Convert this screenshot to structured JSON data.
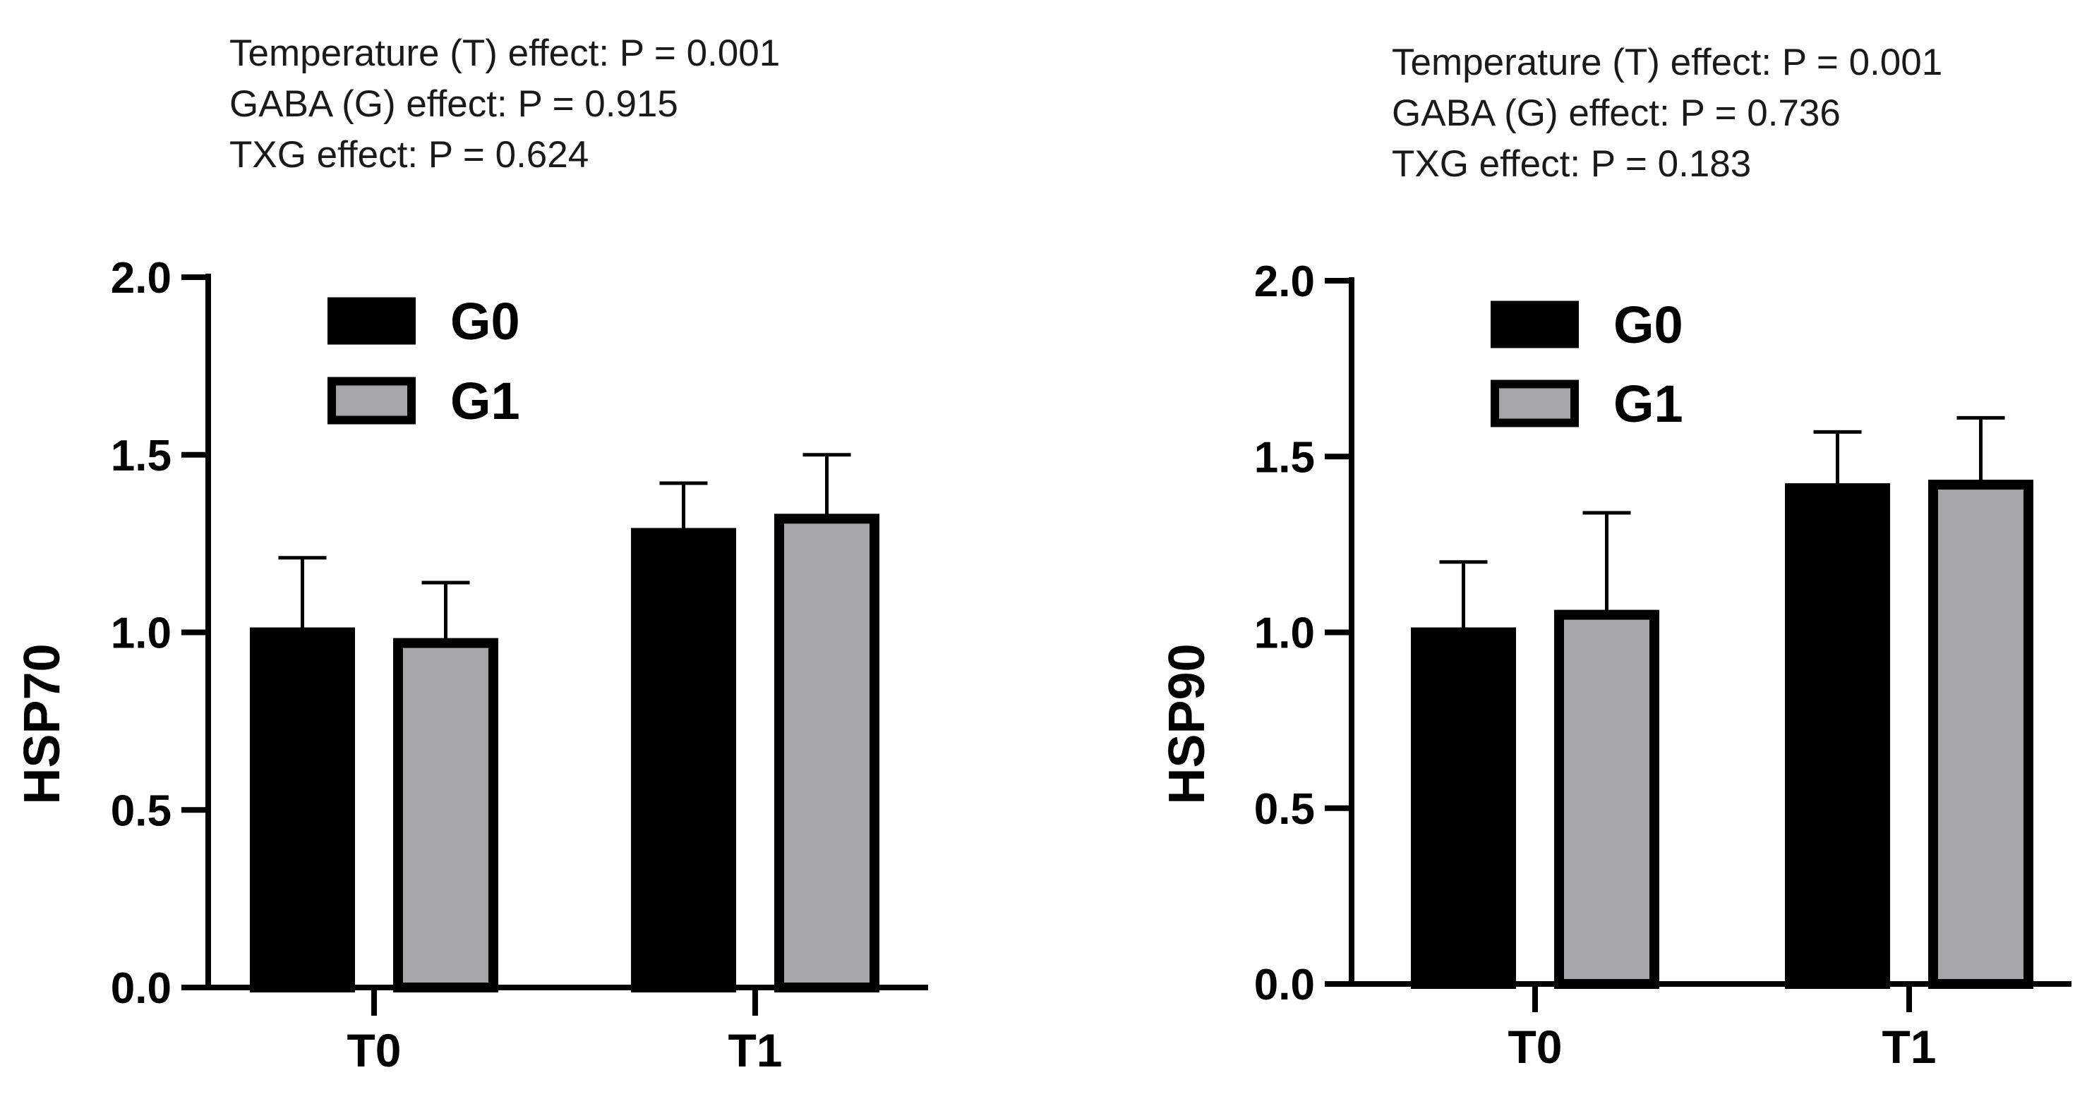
{
  "colors": {
    "G0": "#000000",
    "G1": "#a6a6a8",
    "axis": "#000000",
    "text": "#1a1a1a"
  },
  "chart_data": [
    {
      "type": "bar",
      "ylabel": "HSP70",
      "ylim": [
        0,
        2.0
      ],
      "yticks": [
        "0.0",
        "0.5",
        "1.0",
        "1.5",
        "2.0"
      ],
      "categories": [
        "T0",
        "T1"
      ],
      "legend_position": "top-left",
      "stats": [
        "Temperature (T) effect: P = 0.001",
        "GABA (G) effect: P = 0.915",
        "TXG effect: P = 0.624"
      ],
      "series": [
        {
          "name": "G0",
          "values": [
            1.0,
            1.28
          ],
          "errors": [
            0.21,
            0.14
          ]
        },
        {
          "name": "G1",
          "values": [
            0.97,
            1.32
          ],
          "errors": [
            0.17,
            0.18
          ]
        }
      ]
    },
    {
      "type": "bar",
      "ylabel": "HSP90",
      "ylim": [
        0,
        2.0
      ],
      "yticks": [
        "0.0",
        "0.5",
        "1.0",
        "1.5",
        "2.0"
      ],
      "categories": [
        "T0",
        "T1"
      ],
      "legend_position": "top-left",
      "stats": [
        "Temperature (T) effect: P = 0.001",
        "GABA (G) effect: P = 0.736",
        "TXG effect: P = 0.183"
      ],
      "series": [
        {
          "name": "G0",
          "values": [
            1.0,
            1.41
          ],
          "errors": [
            0.2,
            0.16
          ]
        },
        {
          "name": "G1",
          "values": [
            1.05,
            1.42
          ],
          "errors": [
            0.29,
            0.19
          ]
        }
      ]
    }
  ]
}
